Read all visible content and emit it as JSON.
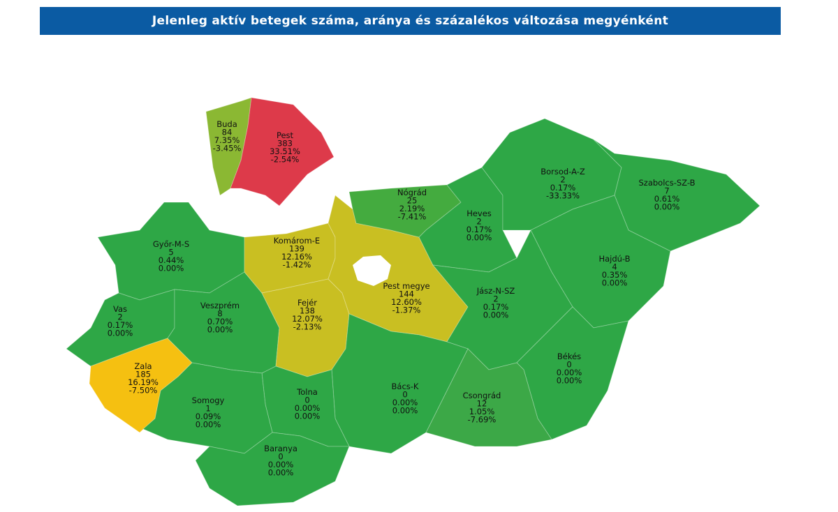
{
  "title": "Jelenleg aktív betegek száma, aránya és százalékos változása megyénként",
  "regions": [
    {
      "name": "Buda",
      "count": "84",
      "share": "7.35%",
      "change": "-3.45%",
      "color": "#8bb833"
    },
    {
      "name": "Pest",
      "count": "383",
      "share": "33.51%",
      "change": "-2.54%",
      "color": "#dd3a4a"
    },
    {
      "name": "Győr-M-S",
      "count": "5",
      "share": "0.44%",
      "change": "0.00%",
      "color": "#2ea746"
    },
    {
      "name": "Vas",
      "count": "2",
      "share": "0.17%",
      "change": "0.00%",
      "color": "#2ea746"
    },
    {
      "name": "Zala",
      "count": "185",
      "share": "16.19%",
      "change": "-7.50%",
      "color": "#f5c011"
    },
    {
      "name": "Veszprém",
      "count": "8",
      "share": "0.70%",
      "change": "0.00%",
      "color": "#2ea746"
    },
    {
      "name": "Komárom-E",
      "count": "139",
      "share": "12.16%",
      "change": "-1.42%",
      "color": "#c9bf22"
    },
    {
      "name": "Fejér",
      "count": "138",
      "share": "12.07%",
      "change": "-2.13%",
      "color": "#c9bf22"
    },
    {
      "name": "Pest megye",
      "count": "144",
      "share": "12.60%",
      "change": "-1.37%",
      "color": "#c9bf22"
    },
    {
      "name": "Nógrád",
      "count": "25",
      "share": "2.19%",
      "change": "-7.41%",
      "color": "#44ab3f"
    },
    {
      "name": "Heves",
      "count": "2",
      "share": "0.17%",
      "change": "0.00%",
      "color": "#2ea746"
    },
    {
      "name": "Borsod-A-Z",
      "count": "2",
      "share": "0.17%",
      "change": "-33.33%",
      "color": "#2ea746"
    },
    {
      "name": "Szabolcs-SZ-B",
      "count": "7",
      "share": "0.61%",
      "change": "0.00%",
      "color": "#2ea746"
    },
    {
      "name": "Hajdú-B",
      "count": "4",
      "share": "0.35%",
      "change": "0.00%",
      "color": "#2ea746"
    },
    {
      "name": "Jász-N-SZ",
      "count": "2",
      "share": "0.17%",
      "change": "0.00%",
      "color": "#2ea746"
    },
    {
      "name": "Békés",
      "count": "0",
      "share": "0.00%",
      "change": "0.00%",
      "color": "#2ea746"
    },
    {
      "name": "Csongrád",
      "count": "12",
      "share": "1.05%",
      "change": "-7.69%",
      "color": "#3ca847"
    },
    {
      "name": "Bács-K",
      "count": "0",
      "share": "0.00%",
      "change": "0.00%",
      "color": "#2ea746"
    },
    {
      "name": "Tolna",
      "count": "0",
      "share": "0.00%",
      "change": "0.00%",
      "color": "#2ea746"
    },
    {
      "name": "Somogy",
      "count": "1",
      "share": "0.09%",
      "change": "0.00%",
      "color": "#2ea746"
    },
    {
      "name": "Baranya",
      "count": "0",
      "share": "0.00%",
      "change": "0.00%",
      "color": "#2ea746"
    }
  ]
}
